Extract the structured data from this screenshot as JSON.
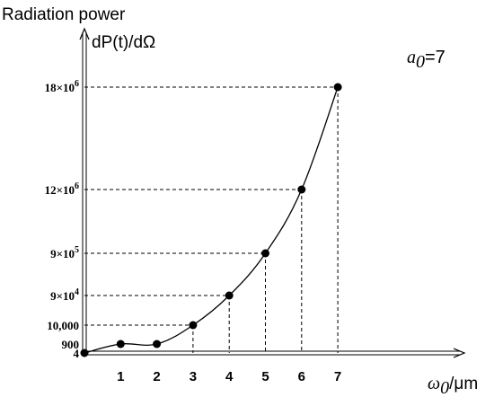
{
  "chart_data": {
    "type": "line",
    "title": "",
    "ylabel_line1": "Radiation power",
    "ylabel_line2": "dP(t)/dΩ",
    "xlabel_symbol": "ω",
    "xlabel_subscript": "0",
    "xlabel_unit": "/μm",
    "annotation": {
      "symbol": "a",
      "subscript": "0",
      "value": "=7"
    },
    "x_ticks": [
      "1",
      "2",
      "3",
      "4",
      "5",
      "6",
      "7"
    ],
    "y_ticks": [
      {
        "label": "4",
        "mantissa": "4",
        "exponent": ""
      },
      {
        "label": "900",
        "mantissa": "900",
        "exponent": ""
      },
      {
        "label": "10,000",
        "mantissa": "10,000",
        "exponent": ""
      },
      {
        "label": "9×10⁴",
        "mantissa": "9×10",
        "exponent": "4"
      },
      {
        "label": "9×10⁵",
        "mantissa": "9×10",
        "exponent": "5"
      },
      {
        "label": "12×10⁶",
        "mantissa": "12×10",
        "exponent": "6"
      },
      {
        "label": "18×10⁶",
        "mantissa": "18×10",
        "exponent": "6"
      }
    ],
    "points": [
      {
        "x": 0,
        "y_label": "4"
      },
      {
        "x": 1,
        "y_label": "900"
      },
      {
        "x": 2,
        "y_label": "900"
      },
      {
        "x": 3,
        "y_label": "10,000"
      },
      {
        "x": 4,
        "y_label": "9×10⁴"
      },
      {
        "x": 5,
        "y_label": "9×10⁵"
      },
      {
        "x": 6,
        "y_label": "12×10⁶"
      },
      {
        "x": 7,
        "y_label": "18×10⁶"
      }
    ],
    "dashed_guides": true,
    "series": [
      {
        "color": "#000000",
        "marker": "filled-circle"
      }
    ],
    "y_axis_scale": "non-uniform (labelled levels)"
  }
}
